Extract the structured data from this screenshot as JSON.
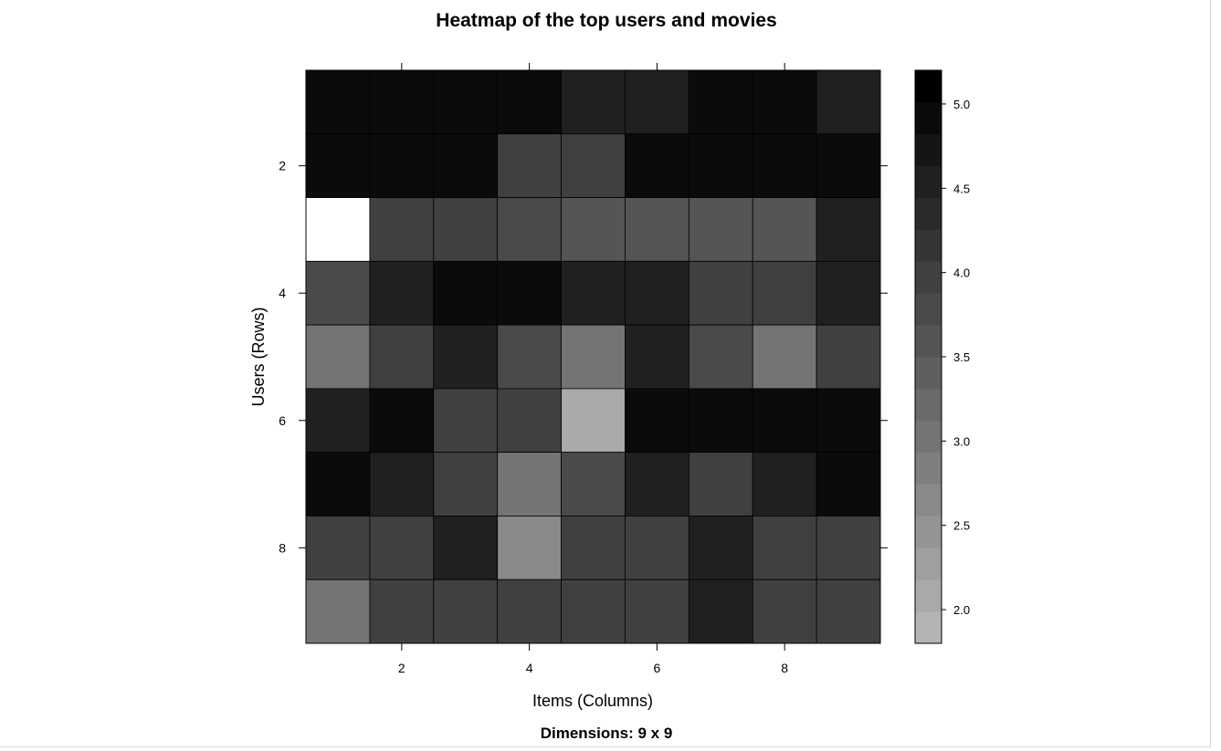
{
  "chart_data": {
    "type": "heatmap",
    "title": "Heatmap of the top users and movies",
    "subtitle": "Dimensions: 9 x 9",
    "xlabel": "Items (Columns)",
    "ylabel": "Users (Rows)",
    "x_ticks": [
      2,
      4,
      6,
      8
    ],
    "y_ticks": [
      2,
      4,
      6,
      8
    ],
    "colorbar_ticks": [
      2.0,
      2.5,
      3.0,
      3.5,
      4.0,
      4.5,
      5.0
    ],
    "colorbar_tick_labels": [
      "2.0",
      "2.5",
      "3.0",
      "3.5",
      "4.0",
      "4.5",
      "5.0"
    ],
    "color_scale": {
      "min": 1.8,
      "max": 5.2,
      "low_color": "#b4b4b4",
      "high_color": "#000000",
      "below_range_color": "#ffffff",
      "steps": 18
    },
    "rows": 9,
    "cols": 9,
    "values": [
      [
        5.0,
        5.0,
        5.0,
        5.0,
        4.5,
        4.5,
        5.0,
        5.0,
        4.5
      ],
      [
        5.0,
        5.0,
        5.0,
        4.0,
        4.0,
        5.0,
        5.0,
        5.0,
        5.0
      ],
      [
        1.0,
        4.0,
        4.0,
        3.7,
        3.6,
        3.6,
        3.6,
        3.6,
        4.5
      ],
      [
        3.7,
        4.5,
        5.0,
        5.0,
        4.5,
        4.5,
        4.0,
        4.0,
        4.5
      ],
      [
        3.0,
        4.0,
        4.5,
        3.7,
        3.0,
        4.5,
        3.7,
        3.0,
        4.0
      ],
      [
        4.5,
        5.0,
        4.0,
        4.0,
        2.0,
        5.0,
        5.0,
        5.0,
        5.0
      ],
      [
        5.0,
        4.5,
        4.0,
        3.0,
        3.7,
        4.5,
        4.0,
        4.5,
        5.0
      ],
      [
        4.0,
        4.0,
        4.5,
        2.7,
        4.0,
        4.0,
        4.5,
        4.0,
        4.0
      ],
      [
        3.0,
        4.0,
        4.0,
        4.0,
        4.0,
        4.0,
        4.5,
        4.0,
        4.0
      ]
    ]
  }
}
